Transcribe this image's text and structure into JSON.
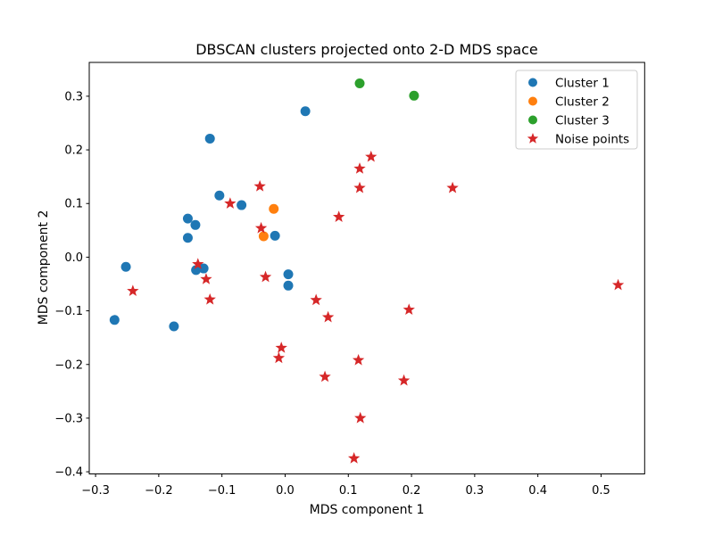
{
  "chart_data": {
    "type": "scatter",
    "title": "DBSCAN clusters projected onto 2-D MDS space",
    "xlabel": "MDS component 1",
    "ylabel": "MDS component 2",
    "xlim": [
      -0.31,
      0.569
    ],
    "ylim": [
      -0.404,
      0.363
    ],
    "xticks": [
      -0.3,
      -0.2,
      -0.1,
      0.0,
      0.1,
      0.2,
      0.3,
      0.4,
      0.5
    ],
    "xtick_labels": [
      "−0.3",
      "−0.2",
      "−0.1",
      "0.0",
      "0.1",
      "0.2",
      "0.3",
      "0.4",
      "0.5"
    ],
    "yticks": [
      -0.4,
      -0.3,
      -0.2,
      -0.1,
      0.0,
      0.1,
      0.2,
      0.3
    ],
    "ytick_labels": [
      "−0.4",
      "−0.3",
      "−0.2",
      "−0.1",
      "0.0",
      "0.1",
      "0.2",
      "0.3"
    ],
    "grid": false,
    "legend": {
      "position": "upper-right",
      "border_color": "#cccccc",
      "background": "#ffffff"
    },
    "series": [
      {
        "name": "Cluster 1",
        "marker": "circle",
        "color": "#1f77b4",
        "points": [
          [
            -0.252,
            -0.018
          ],
          [
            -0.27,
            -0.117
          ],
          [
            -0.176,
            -0.129
          ],
          [
            -0.119,
            0.221
          ],
          [
            0.032,
            0.272
          ],
          [
            -0.104,
            0.115
          ],
          [
            -0.069,
            0.097
          ],
          [
            -0.154,
            0.072
          ],
          [
            -0.142,
            0.06
          ],
          [
            -0.154,
            0.036
          ],
          [
            -0.016,
            0.04
          ],
          [
            0.005,
            -0.032
          ],
          [
            0.005,
            -0.053
          ],
          [
            -0.141,
            -0.024
          ],
          [
            -0.129,
            -0.021
          ]
        ]
      },
      {
        "name": "Cluster 2",
        "marker": "circle",
        "color": "#ff7f0e",
        "points": [
          [
            -0.018,
            0.09
          ],
          [
            -0.034,
            0.039
          ]
        ]
      },
      {
        "name": "Cluster 3",
        "marker": "circle",
        "color": "#2ca02c",
        "points": [
          [
            0.118,
            0.324
          ],
          [
            0.204,
            0.301
          ]
        ]
      },
      {
        "name": "Noise points",
        "marker": "star",
        "color": "#d62728",
        "points": [
          [
            0.136,
            0.187
          ],
          [
            0.118,
            0.165
          ],
          [
            0.118,
            0.129
          ],
          [
            0.265,
            0.129
          ],
          [
            -0.04,
            0.132
          ],
          [
            -0.087,
            0.1
          ],
          [
            0.085,
            0.075
          ],
          [
            -0.038,
            0.054
          ],
          [
            -0.138,
            -0.013
          ],
          [
            -0.125,
            -0.041
          ],
          [
            -0.241,
            -0.063
          ],
          [
            -0.119,
            -0.079
          ],
          [
            -0.031,
            -0.037
          ],
          [
            0.049,
            -0.08
          ],
          [
            0.068,
            -0.112
          ],
          [
            -0.006,
            -0.169
          ],
          [
            -0.01,
            -0.188
          ],
          [
            0.063,
            -0.223
          ],
          [
            0.116,
            -0.192
          ],
          [
            0.119,
            -0.3
          ],
          [
            0.109,
            -0.375
          ],
          [
            0.527,
            -0.052
          ],
          [
            0.196,
            -0.098
          ],
          [
            0.188,
            -0.23
          ]
        ]
      }
    ]
  }
}
